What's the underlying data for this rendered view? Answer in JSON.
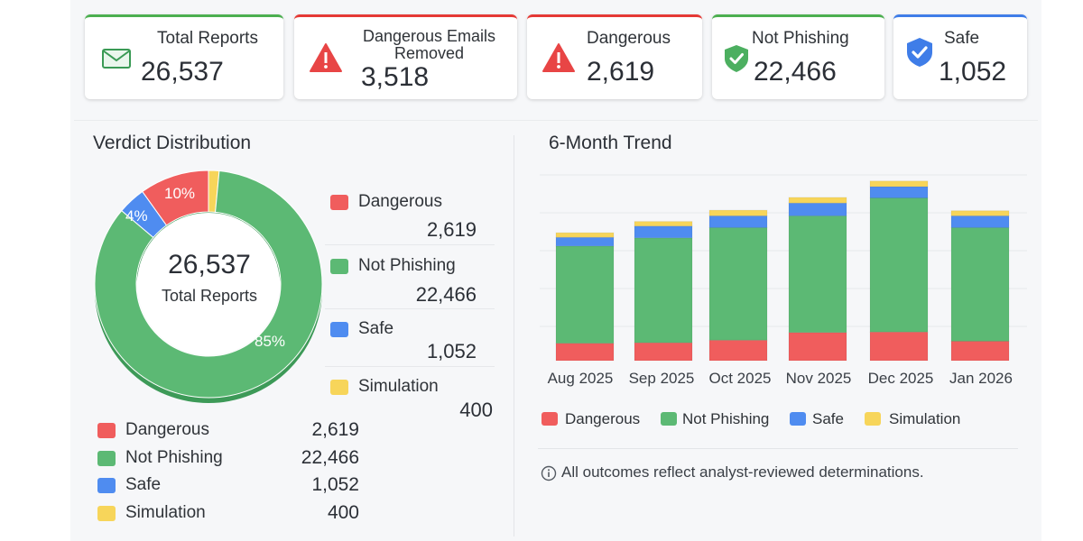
{
  "cards": [
    {
      "label": "Total Reports",
      "value": "26,537",
      "icon": "envelope-icon"
    },
    {
      "label": "Dangerous Emails Removed",
      "value": "3,518",
      "icon": "warning-icon"
    },
    {
      "label": "Dangerous",
      "value": "2,619",
      "icon": "warning-icon"
    },
    {
      "label": "Not Phishing",
      "value": "22,466",
      "icon": "shield-check-icon"
    },
    {
      "label": "Safe",
      "value": "1,052",
      "icon": "shield-check-icon"
    }
  ],
  "colors": {
    "dangerous": "#f05d5d",
    "not_phishing": "#5cb974",
    "safe": "#4f8cf0",
    "simulation": "#f7d55a"
  },
  "verdict": {
    "title": "Verdict Distribution",
    "center_value": "26,537",
    "center_label": "Total Reports",
    "pct_labels": {
      "dangerous": "10%",
      "safe": "4%",
      "not_phishing": "85%"
    },
    "legend": [
      {
        "label": "Dangerous",
        "value": "2,619"
      },
      {
        "label": "Not Phishing",
        "value": "22,466"
      },
      {
        "label": "Safe",
        "value": "1,052"
      },
      {
        "label": "Simulation",
        "value": "400"
      }
    ]
  },
  "chart_data": [
    {
      "type": "pie",
      "categories": [
        "Dangerous",
        "Not Phishing",
        "Safe",
        "Simulation"
      ],
      "values": [
        2619,
        22466,
        1052,
        400
      ]
    },
    {
      "type": "bar",
      "title": "6-Month Trend",
      "stacked": true,
      "categories": [
        "Aug 2025",
        "Sep 2025",
        "Oct 2025",
        "Nov 2025",
        "Dec 2025",
        "Jan 2026"
      ],
      "series": [
        {
          "name": "Dangerous",
          "values": [
            340,
            350,
            400,
            550,
            560,
            380
          ]
        },
        {
          "name": "Not Phishing",
          "values": [
            1900,
            2050,
            2200,
            2280,
            2620,
            2220
          ]
        },
        {
          "name": "Safe",
          "values": [
            170,
            230,
            230,
            250,
            220,
            230
          ]
        },
        {
          "name": "Simulation",
          "values": [
            90,
            90,
            110,
            110,
            110,
            100
          ]
        }
      ],
      "ylim": [
        0,
        3700
      ],
      "grid": true,
      "legend": "bottom"
    }
  ],
  "trend": {
    "title": "6-Month Trend",
    "legend": [
      "Dangerous",
      "Not Phishing",
      "Safe",
      "Simulation"
    ],
    "note": "All outcomes reflect analyst-reviewed determinations."
  }
}
